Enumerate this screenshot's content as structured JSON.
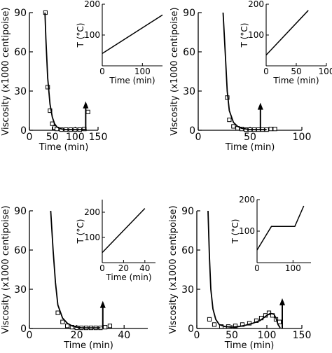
{
  "chart_data": [
    {
      "type": "scatter",
      "xlabel": "Time (min)",
      "ylabel": "Viscosity (x1000 centipoise)",
      "xlim": [
        0,
        150
      ],
      "ylim": [
        0,
        90
      ],
      "xticks": [
        0,
        50,
        100,
        150
      ],
      "yticks": [
        0,
        30,
        60,
        90
      ],
      "series": [
        {
          "x": [
            35,
            40,
            45,
            50,
            55,
            60,
            70,
            80,
            90,
            100,
            110,
            120,
            128
          ],
          "y": [
            90,
            33,
            15,
            5,
            2,
            1,
            0.5,
            0.5,
            0.5,
            0.5,
            0.5,
            1,
            14
          ]
        },
        {
          "x": [
            34,
            36,
            40,
            45,
            50,
            55,
            60,
            70,
            80,
            90,
            100,
            110,
            120,
            125
          ],
          "y": [
            90,
            70,
            40,
            20,
            10,
            5,
            2.5,
            1,
            0.5,
            0.5,
            0.5,
            0.5,
            0.5,
            0.5
          ]
        }
      ],
      "arrow": {
        "x": 123,
        "y_from": 0,
        "y_to": 21
      },
      "inset": {
        "ylabel": "T (°C)",
        "xlabel": "Time (min)",
        "xlim": [
          0,
          150
        ],
        "ylim": [
          0,
          200
        ],
        "xticks": [
          0,
          100
        ],
        "yticks": [
          100,
          200
        ],
        "line": {
          "x": [
            0,
            150
          ],
          "y": [
            40,
            165
          ]
        }
      }
    },
    {
      "type": "scatter",
      "xlabel": "Time (min)",
      "ylabel": "Viscosity (x1000 centipoise)",
      "xlim": [
        0,
        100
      ],
      "ylim": [
        0,
        90
      ],
      "xticks": [
        0,
        50,
        100
      ],
      "yticks": [
        0,
        30,
        60,
        90
      ],
      "series": [
        {
          "x": [
            28,
            30,
            34,
            38,
            42,
            46,
            50,
            54,
            58,
            62,
            66,
            70,
            74
          ],
          "y": [
            25,
            8,
            3,
            1.5,
            1,
            0.5,
            0.5,
            0.5,
            0.5,
            0.5,
            0.5,
            1,
            1
          ]
        },
        {
          "x": [
            24,
            26,
            28,
            30,
            34,
            38,
            42,
            46,
            50,
            56,
            60,
            66
          ],
          "y": [
            90,
            60,
            30,
            15,
            6,
            3,
            1.5,
            1,
            0.5,
            0.5,
            0.5,
            0.5
          ]
        }
      ],
      "arrow": {
        "x": 60,
        "y_from": 0,
        "y_to": 20
      },
      "inset": {
        "ylabel": "T (°C)",
        "xlabel": "Time (min)",
        "xlim": [
          0,
          100
        ],
        "ylim": [
          0,
          200
        ],
        "xticks": [
          0,
          50,
          100
        ],
        "yticks": [
          100,
          200
        ],
        "line": {
          "x": [
            0,
            70
          ],
          "y": [
            35,
            180
          ]
        }
      }
    },
    {
      "type": "scatter",
      "xlabel": "Time (min)",
      "ylabel": "Viscosity (x1000 centipoise)",
      "xlim": [
        0,
        50
      ],
      "ylim": [
        0,
        90
      ],
      "xticks": [
        0,
        20,
        40
      ],
      "yticks": [
        0,
        30,
        60,
        90
      ],
      "series": [
        {
          "x": [
            12,
            14,
            16,
            18,
            20,
            22,
            24,
            26,
            28,
            30,
            32,
            34
          ],
          "y": [
            12,
            5,
            2,
            1,
            0.5,
            0.5,
            0.5,
            0.5,
            0.5,
            0.5,
            1,
            2
          ]
        },
        {
          "x": [
            9,
            10,
            11,
            12,
            14,
            16,
            18,
            20,
            22,
            26,
            30
          ],
          "y": [
            90,
            60,
            35,
            18,
            8,
            4,
            2,
            1,
            0.5,
            0.5,
            0.5
          ]
        }
      ],
      "arrow": {
        "x": 31,
        "y_from": 0,
        "y_to": 20
      },
      "inset": {
        "ylabel": "T (°C)",
        "xlabel": "Time (min)",
        "xlim": [
          0,
          50
        ],
        "ylim": [
          0,
          250
        ],
        "xticks": [
          0,
          20,
          40
        ],
        "yticks": [
          100,
          200
        ],
        "line": {
          "x": [
            0,
            40
          ],
          "y": [
            40,
            215
          ]
        }
      }
    },
    {
      "type": "scatter",
      "xlabel": "Time (min)",
      "ylabel": "Viscosity (x1000 centipoise)",
      "xlim": [
        0,
        150
      ],
      "ylim": [
        0,
        90
      ],
      "xticks": [
        0,
        50,
        100,
        150
      ],
      "yticks": [
        0,
        30,
        60,
        90
      ],
      "series": [
        {
          "x": [
            18,
            25,
            35,
            45,
            55,
            65,
            75,
            85,
            92,
            98,
            103,
            108,
            113,
            118
          ],
          "y": [
            7,
            3,
            1.5,
            1.5,
            2,
            3,
            4,
            6,
            8,
            10,
            12,
            10,
            7,
            5
          ]
        },
        {
          "x": [
            16,
            18,
            20,
            23,
            27,
            32,
            40,
            50,
            60,
            70,
            80,
            90,
            95,
            100,
            105,
            110,
            113,
            116,
            119
          ],
          "y": [
            90,
            55,
            30,
            15,
            7,
            3,
            1.5,
            1,
            1.5,
            2.5,
            4,
            6,
            8,
            10,
            11.5,
            11,
            8,
            3,
            0.5
          ]
        }
      ],
      "arrow": {
        "x": 122,
        "y_from": 0,
        "y_to": 22
      },
      "inset": {
        "ylabel": "T (°C)",
        "xlabel": "",
        "xlim": [
          0,
          150
        ],
        "ylim": [
          0,
          200
        ],
        "xticks": [
          0,
          100
        ],
        "yticks": [
          100,
          200
        ],
        "line": {
          "x": [
            0,
            40,
            105,
            130
          ],
          "y": [
            40,
            115,
            115,
            180
          ]
        }
      }
    }
  ]
}
